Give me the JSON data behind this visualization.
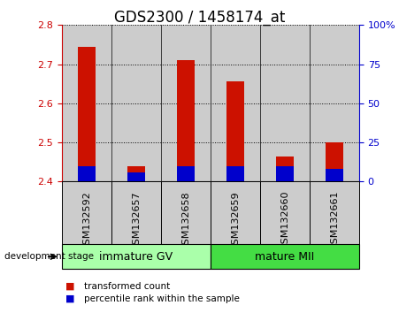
{
  "title": "GDS2300 / 1458174_at",
  "samples": [
    "GSM132592",
    "GSM132657",
    "GSM132658",
    "GSM132659",
    "GSM132660",
    "GSM132661"
  ],
  "transformed_counts": [
    2.745,
    2.44,
    2.71,
    2.655,
    2.465,
    2.5
  ],
  "percentile_ranks_pct": [
    10,
    6,
    10,
    10,
    10,
    8
  ],
  "ylim": [
    2.4,
    2.8
  ],
  "yticks": [
    2.4,
    2.5,
    2.6,
    2.7,
    2.8
  ],
  "y2lim": [
    0,
    100
  ],
  "y2ticks": [
    0,
    25,
    50,
    75,
    100
  ],
  "y2ticklabels": [
    "0",
    "25",
    "50",
    "75",
    "100%"
  ],
  "bar_bottom": 2.4,
  "bar_width": 0.35,
  "red_color": "#cc1100",
  "blue_color": "#0000cc",
  "group1_label": "immature GV",
  "group2_label": "mature MII",
  "group1_color": "#aaffaa",
  "group2_color": "#44dd44",
  "gray_col_color": "#cccccc",
  "stage_label": "development stage",
  "legend_red": "transformed count",
  "legend_blue": "percentile rank within the sample",
  "left_axis_color": "#cc0000",
  "right_axis_color": "#0000cc",
  "title_fontsize": 12,
  "tick_fontsize": 8,
  "label_fontsize": 9
}
